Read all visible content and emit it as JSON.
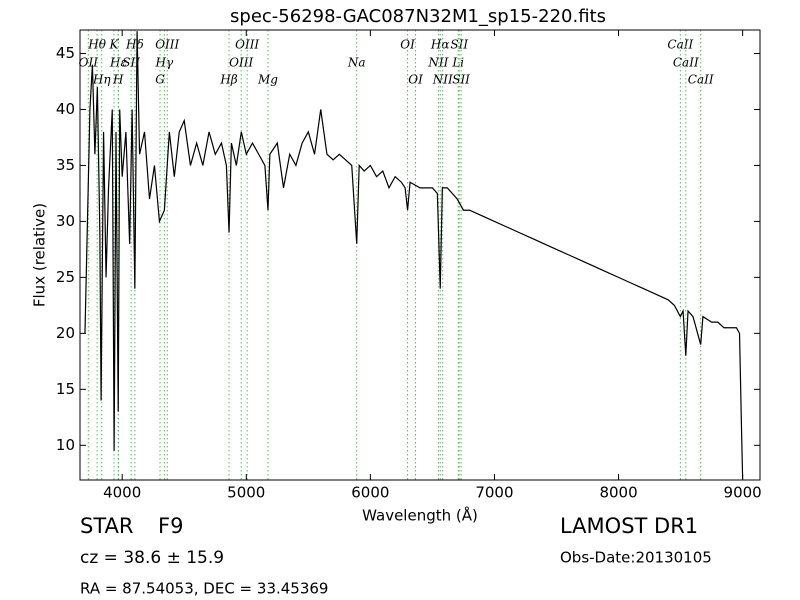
{
  "chart_data": {
    "type": "line",
    "title": "spec-56298-GAC087N32M1_sp15-220.fits",
    "x_label": "Wavelength (Å)",
    "y_label": "Flux (relative)",
    "xlim": [
      3660,
      9140
    ],
    "ylim": [
      6.9,
      47.1
    ],
    "xticks": [
      4000,
      5000,
      6000,
      7000,
      8000,
      9000
    ],
    "yticks": [
      10,
      15,
      20,
      25,
      30,
      35,
      40,
      45
    ],
    "series": [
      {
        "color": "#000000",
        "x": [
          3700,
          3720,
          3740,
          3760,
          3780,
          3800,
          3820,
          3830,
          3850,
          3870,
          3890,
          3920,
          3935,
          3950,
          3968,
          3980,
          4000,
          4030,
          4060,
          4080,
          4102,
          4120,
          4140,
          4180,
          4220,
          4260,
          4300,
          4340,
          4380,
          4420,
          4460,
          4500,
          4550,
          4600,
          4650,
          4700,
          4750,
          4800,
          4840,
          4861,
          4880,
          4920,
          4960,
          5000,
          5050,
          5100,
          5150,
          5175,
          5190,
          5250,
          5300,
          5350,
          5400,
          5450,
          5500,
          5550,
          5600,
          5650,
          5700,
          5750,
          5800,
          5850,
          5890,
          5910,
          5950,
          6000,
          6050,
          6100,
          6150,
          6200,
          6250,
          6280,
          6300,
          6320,
          6400,
          6450,
          6500,
          6540,
          6563,
          6580,
          6620,
          6700,
          6750,
          6800,
          6900,
          7000,
          7100,
          7200,
          7300,
          7400,
          7500,
          7600,
          7700,
          7800,
          7900,
          8000,
          8100,
          8200,
          8300,
          8400,
          8450,
          8498,
          8520,
          8542,
          8560,
          8600,
          8662,
          8680,
          8750,
          8800,
          8850,
          8900,
          8950,
          8975,
          8990,
          9000
        ],
        "values": [
          20,
          30,
          40,
          44,
          36,
          42,
          29,
          14,
          38,
          25,
          33,
          40,
          9.5,
          38,
          13,
          40,
          34,
          38,
          28,
          40,
          24,
          47,
          36,
          38,
          32,
          35,
          30,
          31,
          38,
          34,
          38,
          39,
          35,
          37,
          35,
          38,
          36,
          37,
          35,
          29,
          37,
          35,
          38,
          36,
          37,
          36,
          35,
          31,
          36,
          37,
          33,
          36,
          35,
          37,
          38,
          36,
          40,
          36,
          35.5,
          36,
          35.5,
          35,
          28,
          35,
          34.5,
          35,
          34,
          34.5,
          33,
          34,
          33.5,
          33,
          31,
          33.5,
          33,
          33,
          33,
          32.5,
          24,
          33,
          33,
          32,
          31,
          31,
          30.5,
          30,
          29.5,
          29,
          28.5,
          28,
          27.5,
          27,
          26.5,
          26,
          25.5,
          25,
          24.5,
          24,
          23.5,
          23,
          22.5,
          21.5,
          22,
          18,
          22,
          21.5,
          19,
          21.5,
          21,
          21,
          20.5,
          20.5,
          20.5,
          20,
          12,
          7
        ]
      }
    ],
    "lines_color": "#5cb85c",
    "lines": [
      {
        "label": "OII",
        "wavelength": 3727
      },
      {
        "label": "Hθ",
        "wavelength": 3798
      },
      {
        "label": "Hη",
        "wavelength": 3835
      },
      {
        "label": "K",
        "wavelength": 3934
      },
      {
        "label": "Hε",
        "wavelength": 3970
      },
      {
        "label": "H",
        "wavelength": 3968
      },
      {
        "label": "SII",
        "wavelength": 4072
      },
      {
        "label": "Hδ",
        "wavelength": 4102
      },
      {
        "label": "G",
        "wavelength": 4305
      },
      {
        "label": "Hγ",
        "wavelength": 4340
      },
      {
        "label": "OIII",
        "wavelength": 4363
      },
      {
        "label": "Hβ",
        "wavelength": 4861
      },
      {
        "label": "OIII",
        "wavelength": 4959
      },
      {
        "label": "OIII",
        "wavelength": 5007
      },
      {
        "label": "Mg",
        "wavelength": 5175
      },
      {
        "label": "Na",
        "wavelength": 5890
      },
      {
        "label": "OI",
        "wavelength": 6300
      },
      {
        "label": "OI",
        "wavelength": 6364
      },
      {
        "label": "NII",
        "wavelength": 6548
      },
      {
        "label": "Hα",
        "wavelength": 6563
      },
      {
        "label": "NII",
        "wavelength": 6583
      },
      {
        "label": "Li",
        "wavelength": 6708
      },
      {
        "label": "SII",
        "wavelength": 6716
      },
      {
        "label": "SII",
        "wavelength": 6731
      },
      {
        "label": "CaII",
        "wavelength": 8498
      },
      {
        "label": "CaII",
        "wavelength": 8542
      },
      {
        "label": "CaII",
        "wavelength": 8662
      }
    ]
  },
  "footer": {
    "object_class": "STAR",
    "subclass": "F9",
    "cz": "cz = 38.6 ± 15.9",
    "coords": "RA = 87.54053, DEC = 33.45369",
    "survey": "LAMOST DR1",
    "obs_date": "Obs-Date:20130105"
  }
}
